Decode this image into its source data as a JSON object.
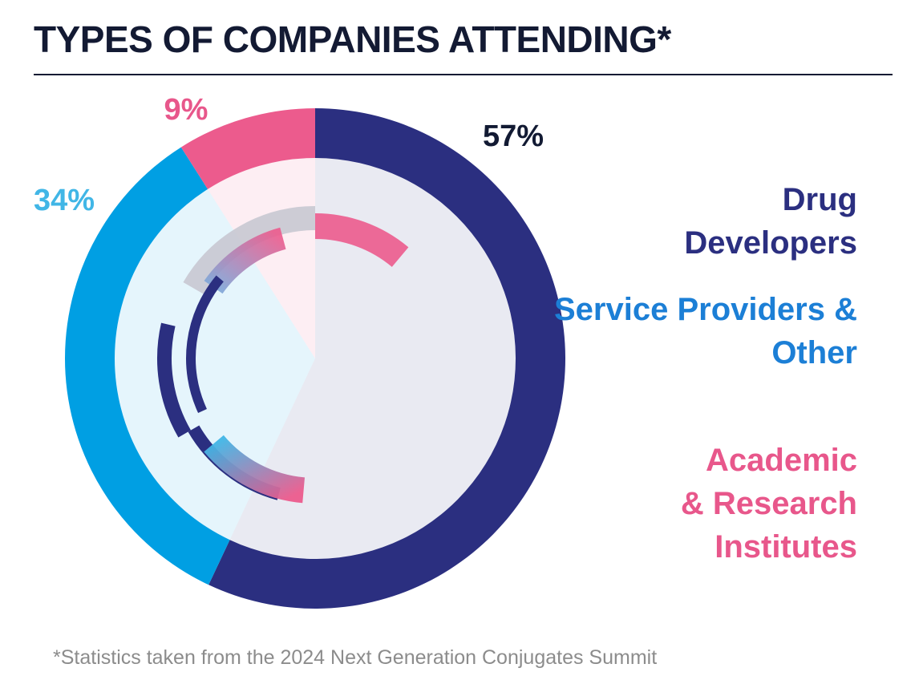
{
  "chart_data": {
    "type": "pie",
    "title": "TYPES OF COMPANIES ATTENDING*",
    "categories": [
      "Drug\nDevelopers",
      "Service Providers &\nOther",
      "Academic\n& Research\nInstitutes"
    ],
    "values": [
      57,
      34,
      9
    ],
    "value_labels": [
      "57%",
      "34%",
      "9%"
    ],
    "colors": [
      "#2b2f80",
      "#009fe3",
      "#ec5b8d"
    ],
    "label_colors": [
      "#121a33",
      "#41b6e6",
      "#e8578b"
    ],
    "legend_colors": [
      "#2b2f80",
      "#1c7fd6",
      "#e8578b"
    ],
    "footnote": "*Statistics taken from the 2024 Next Generation Conjugates Summit"
  }
}
